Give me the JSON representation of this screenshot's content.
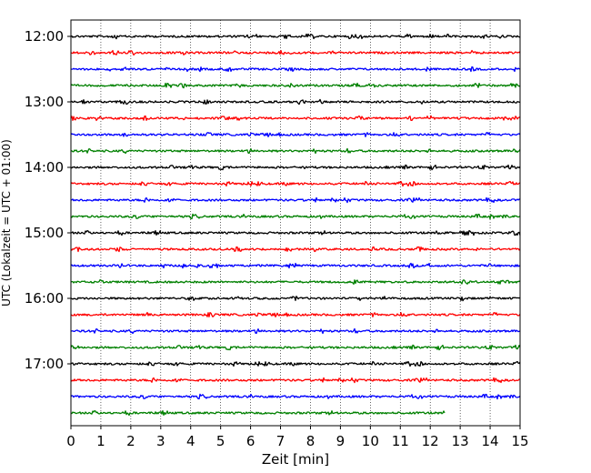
{
  "chart_data": {
    "type": "line",
    "title": "",
    "xlabel": "Zeit  [min]",
    "ylabel": "UTC (Lokalzeit = UTC + 01:00)",
    "xlim": [
      0,
      15
    ],
    "x_ticks": [
      0,
      1,
      2,
      3,
      4,
      5,
      6,
      7,
      8,
      9,
      10,
      11,
      12,
      13,
      14,
      15
    ],
    "y_tick_labels": [
      "12:00",
      "13:00",
      "14:00",
      "15:00",
      "16:00",
      "17:00"
    ],
    "grid": "vertical dotted",
    "legend": "none",
    "trace_interval_min": 15,
    "trace_colors": [
      "#000000",
      "#ff0000",
      "#0000ff",
      "#008000"
    ],
    "series": [
      {
        "row_time": "12:00",
        "x_end": 15
      },
      {
        "row_time": "12:15",
        "x_end": 15
      },
      {
        "row_time": "12:30",
        "x_end": 15
      },
      {
        "row_time": "12:45",
        "x_end": 15
      },
      {
        "row_time": "13:00",
        "x_end": 15
      },
      {
        "row_time": "13:15",
        "x_end": 15
      },
      {
        "row_time": "13:30",
        "x_end": 15
      },
      {
        "row_time": "13:45",
        "x_end": 15
      },
      {
        "row_time": "14:00",
        "x_end": 15
      },
      {
        "row_time": "14:15",
        "x_end": 15
      },
      {
        "row_time": "14:30",
        "x_end": 15
      },
      {
        "row_time": "14:45",
        "x_end": 15
      },
      {
        "row_time": "15:00",
        "x_end": 15
      },
      {
        "row_time": "15:15",
        "x_end": 15
      },
      {
        "row_time": "15:30",
        "x_end": 15
      },
      {
        "row_time": "15:45",
        "x_end": 15
      },
      {
        "row_time": "16:00",
        "x_end": 15
      },
      {
        "row_time": "16:15",
        "x_end": 15
      },
      {
        "row_time": "16:30",
        "x_end": 15
      },
      {
        "row_time": "16:45",
        "x_end": 15
      },
      {
        "row_time": "17:00",
        "x_end": 15
      },
      {
        "row_time": "17:15",
        "x_end": 15
      },
      {
        "row_time": "17:30",
        "x_end": 15
      },
      {
        "row_time": "17:45",
        "x_end": 12.5
      }
    ]
  }
}
